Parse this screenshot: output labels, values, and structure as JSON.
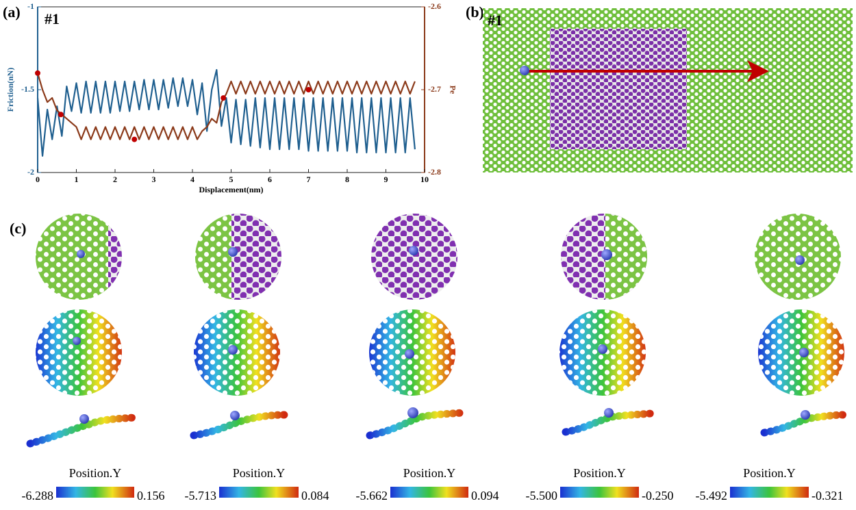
{
  "panels": {
    "a": {
      "label": "(a)",
      "tag": "#1"
    },
    "b": {
      "label": "(b)",
      "tag": "#1"
    },
    "c": {
      "label": "(c)"
    }
  },
  "chart_data": {
    "type": "line",
    "x_label": "Displacement(nm)",
    "y_label": "Friction(nN)",
    "y2_label": "Pe",
    "xlim": [
      0,
      10
    ],
    "xticks": [
      0,
      1,
      2,
      3,
      4,
      5,
      6,
      7,
      8,
      9,
      10
    ],
    "ylim": [
      -2,
      -1
    ],
    "yticks": [
      -2,
      -1.5,
      -1
    ],
    "y2lim": [
      -2.8,
      -2.6
    ],
    "y2ticks": [
      -2.8,
      -2.7,
      -2.6
    ],
    "y_color": "#1f5f8f",
    "y2_color": "#8b3a1a",
    "x": [
      0,
      0.125,
      0.25,
      0.375,
      0.5,
      0.625,
      0.75,
      0.875,
      1,
      1.125,
      1.25,
      1.375,
      1.5,
      1.625,
      1.75,
      1.875,
      2,
      2.125,
      2.25,
      2.375,
      2.5,
      2.625,
      2.75,
      2.875,
      3,
      3.125,
      3.25,
      3.375,
      3.5,
      3.625,
      3.75,
      3.875,
      4,
      4.125,
      4.25,
      4.375,
      4.5,
      4.625,
      4.75,
      4.875,
      5,
      5.125,
      5.25,
      5.375,
      5.5,
      5.625,
      5.75,
      5.875,
      6,
      6.125,
      6.25,
      6.375,
      6.5,
      6.625,
      6.75,
      6.875,
      7,
      7.125,
      7.25,
      7.375,
      7.5,
      7.625,
      7.75,
      7.875,
      8,
      8.125,
      8.25,
      8.375,
      8.5,
      8.625,
      8.75,
      8.875,
      9,
      9.125,
      9.25,
      9.375,
      9.5,
      9.625,
      9.75
    ],
    "series": [
      {
        "color": "#1f5f8f",
        "axis": "y",
        "style": "line",
        "values": [
          -1.55,
          -1.9,
          -1.62,
          -1.8,
          -1.6,
          -1.78,
          -1.48,
          -1.63,
          -1.46,
          -1.64,
          -1.45,
          -1.64,
          -1.45,
          -1.64,
          -1.45,
          -1.64,
          -1.45,
          -1.63,
          -1.45,
          -1.63,
          -1.45,
          -1.62,
          -1.44,
          -1.62,
          -1.44,
          -1.62,
          -1.44,
          -1.61,
          -1.43,
          -1.6,
          -1.43,
          -1.6,
          -1.44,
          -1.65,
          -1.46,
          -1.75,
          -1.5,
          -1.38,
          -1.72,
          -1.55,
          -1.82,
          -1.56,
          -1.83,
          -1.56,
          -1.84,
          -1.55,
          -1.85,
          -1.55,
          -1.86,
          -1.55,
          -1.86,
          -1.55,
          -1.86,
          -1.55,
          -1.86,
          -1.55,
          -1.87,
          -1.55,
          -1.87,
          -1.55,
          -1.87,
          -1.55,
          -1.87,
          -1.55,
          -1.87,
          -1.55,
          -1.88,
          -1.55,
          -1.88,
          -1.55,
          -1.88,
          -1.55,
          -1.88,
          -1.55,
          -1.88,
          -1.55,
          -1.88,
          -1.55,
          -1.86
        ]
      },
      {
        "color": "#8b3a1a",
        "axis": "y2",
        "style": "line",
        "values": [
          -2.68,
          -2.7,
          -2.715,
          -2.71,
          -2.725,
          -2.73,
          -2.735,
          -2.74,
          -2.745,
          -2.76,
          -2.745,
          -2.76,
          -2.745,
          -2.76,
          -2.745,
          -2.76,
          -2.745,
          -2.76,
          -2.745,
          -2.76,
          -2.745,
          -2.76,
          -2.745,
          -2.76,
          -2.745,
          -2.76,
          -2.745,
          -2.76,
          -2.745,
          -2.76,
          -2.745,
          -2.76,
          -2.745,
          -2.76,
          -2.75,
          -2.745,
          -2.735,
          -2.74,
          -2.715,
          -2.705,
          -2.69,
          -2.705,
          -2.69,
          -2.705,
          -2.69,
          -2.705,
          -2.69,
          -2.705,
          -2.69,
          -2.705,
          -2.69,
          -2.705,
          -2.69,
          -2.705,
          -2.69,
          -2.705,
          -2.69,
          -2.705,
          -2.69,
          -2.705,
          -2.69,
          -2.705,
          -2.69,
          -2.705,
          -2.69,
          -2.705,
          -2.69,
          -2.705,
          -2.69,
          -2.705,
          -2.69,
          -2.705,
          -2.69,
          -2.705,
          -2.69,
          -2.705,
          -2.69,
          -2.705,
          -2.69
        ]
      },
      {
        "color": "#c00000",
        "axis": "y2",
        "style": "points",
        "x": [
          0,
          0.6,
          2.5,
          4.8,
          7
        ],
        "values": [
          -2.68,
          -2.73,
          -2.76,
          -2.71,
          -2.7
        ]
      }
    ]
  },
  "colorbars": [
    {
      "title": "Position.Y",
      "min": "-6.288",
      "max": "0.156"
    },
    {
      "title": "Position.Y",
      "min": "-5.713",
      "max": "0.084"
    },
    {
      "title": "Position.Y",
      "min": "-5.662",
      "max": "0.094"
    },
    {
      "title": "Position.Y",
      "min": "-5.500",
      "max": "-0.250"
    },
    {
      "title": "Position.Y",
      "min": "-5.492",
      "max": "-0.321"
    }
  ]
}
